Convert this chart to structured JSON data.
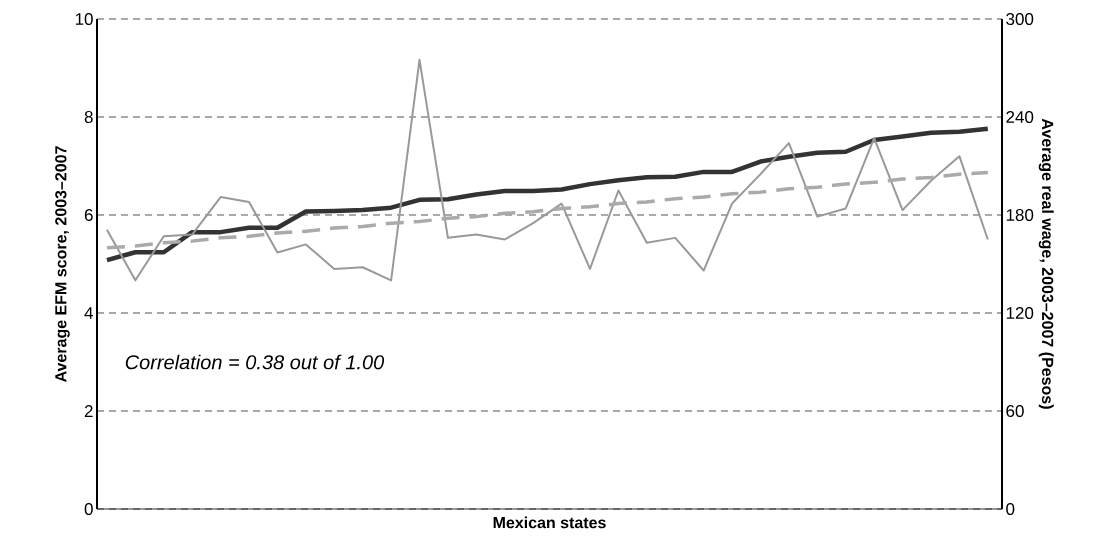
{
  "chart_data": {
    "type": "line",
    "xlabel": "Mexican states",
    "ylabel": "Average EFM score, 2003–2007",
    "y2label": "Average real wage, 2003–2007 (Pesos)",
    "categories": [
      null,
      null,
      null,
      null,
      null,
      null,
      null,
      null,
      null,
      null,
      null,
      null,
      null,
      null,
      null,
      null,
      null,
      null,
      null,
      null,
      null,
      null,
      null,
      null,
      null,
      null,
      null,
      null,
      null,
      null,
      null,
      null
    ],
    "series": [
      {
        "color": "#333333",
        "line_style": "solid",
        "values": [
          5.08,
          5.24,
          5.24,
          5.65,
          5.65,
          5.74,
          5.74,
          6.07,
          6.08,
          6.1,
          6.15,
          6.31,
          6.32,
          6.42,
          6.49,
          6.49,
          6.52,
          6.63,
          6.71,
          6.77,
          6.78,
          6.88,
          6.88,
          7.09,
          7.19,
          7.27,
          7.29,
          7.53,
          7.6,
          7.68,
          7.7,
          7.76
        ]
      },
      {
        "color": "#999999",
        "line_style": "solid",
        "axis": "y2",
        "values": [
          171,
          140,
          167,
          168,
          191,
          188,
          157,
          162,
          147,
          148,
          140,
          275,
          166,
          168,
          165,
          175,
          187,
          147,
          195,
          163,
          166,
          146,
          187,
          205,
          224,
          179,
          184,
          227,
          183,
          201,
          216,
          165
        ]
      },
      {
        "color": "#aaaaaa",
        "line_style": "dashed",
        "axis": "y2",
        "values": [
          160,
          161,
          163,
          164,
          166,
          167,
          169,
          170,
          172,
          173,
          175,
          176,
          178,
          179,
          181,
          182,
          184,
          185,
          187,
          188,
          190,
          191,
          193,
          194,
          196,
          197,
          199,
          200,
          202,
          203,
          205,
          206
        ]
      }
    ],
    "ylim": [
      0,
      10
    ],
    "yticks": [
      0,
      2,
      4,
      6,
      8,
      10
    ],
    "y2lim": [
      0,
      300
    ],
    "y2ticks": [
      0,
      60,
      120,
      180,
      240,
      300
    ],
    "grid": "y",
    "marker": "none",
    "annotations": [
      "Correlation = 0.38 out of 1.00"
    ]
  }
}
